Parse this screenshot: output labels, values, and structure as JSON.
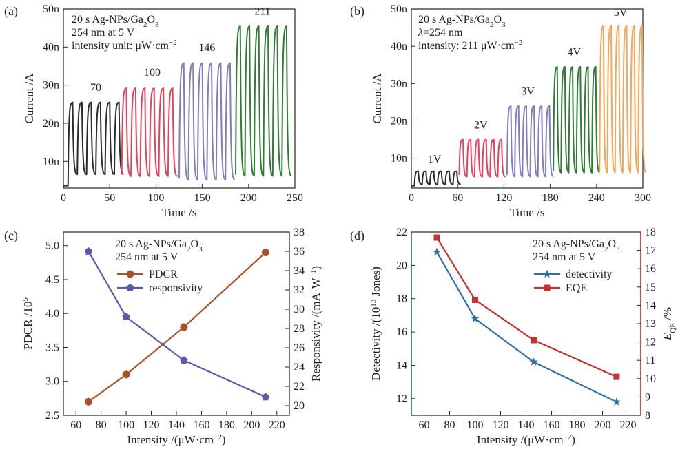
{
  "chart_data": [
    {
      "id": "a",
      "panel_label": "(a)",
      "type": "line",
      "title": "",
      "xlabel": "Time /s",
      "ylabel": "Current /A",
      "xlim": [
        0,
        250
      ],
      "ylim": [
        3,
        50
      ],
      "xticks": [
        0,
        50,
        100,
        150,
        200,
        250
      ],
      "yticks": [
        10,
        20,
        30,
        40,
        50
      ],
      "ytick_labels": [
        "10n",
        "20n",
        "30n",
        "40n",
        "50n"
      ],
      "annotation": [
        "20 s Ag-NPs/Ga",
        "2",
        "O",
        "3",
        "254 nm at 5 V",
        "intensity unit: μW·cm",
        "−2"
      ],
      "series": [
        {
          "name": "70",
          "color": "#2b2b2b",
          "t_start": 5,
          "cycles": 6,
          "period": 10,
          "peak": 25.5,
          "base": 6.5,
          "label_pos": [
            35,
            28.5
          ]
        },
        {
          "name": "100",
          "color": "#e8405a",
          "t_start": 63,
          "cycles": 6,
          "period": 10,
          "peak": 29.2,
          "base": 6.0,
          "label_pos": [
            96,
            32.5
          ]
        },
        {
          "name": "146",
          "color": "#7f7ebd",
          "t_start": 125,
          "cycles": 6,
          "period": 10,
          "peak": 35.8,
          "base": 5.0,
          "label_pos": [
            155,
            39.0
          ]
        },
        {
          "name": "211",
          "color": "#2f7d32",
          "t_start": 186,
          "cycles": 6,
          "period": 10,
          "peak": 45.5,
          "base": 6.0,
          "label_pos": [
            215,
            48.5
          ]
        }
      ],
      "initial_dark": 3.6
    },
    {
      "id": "b",
      "panel_label": "(b)",
      "type": "line",
      "title": "",
      "xlabel": "Time /s",
      "ylabel": "Current /A",
      "xlim": [
        0,
        300
      ],
      "ylim": [
        2,
        50
      ],
      "xticks": [
        0,
        60,
        120,
        180,
        240,
        300
      ],
      "yticks": [
        10,
        20,
        30,
        40,
        50
      ],
      "ytick_labels": [
        "10n",
        "20n",
        "30n",
        "40n",
        "50n"
      ],
      "annotation": [
        "20 s Ag-NPs/Ga",
        "2",
        "O",
        "3",
        "λ",
        "=254 nm",
        "intensity: 211 μW·cm",
        "−2"
      ],
      "series": [
        {
          "name": "1V",
          "color": "#2b2b2b",
          "t_start": 4,
          "cycles": 6,
          "period": 10,
          "peak": 6.5,
          "base": 3.0,
          "label_pos": [
            30,
            8.8
          ]
        },
        {
          "name": "2V",
          "color": "#e8405a",
          "t_start": 62,
          "cycles": 6,
          "period": 10,
          "peak": 15.0,
          "base": 5.0,
          "label_pos": [
            90,
            18.0
          ]
        },
        {
          "name": "3V",
          "color": "#7f7ebd",
          "t_start": 124,
          "cycles": 6,
          "period": 10,
          "peak": 24.0,
          "base": 5.0,
          "label_pos": [
            151,
            27.0
          ]
        },
        {
          "name": "4V",
          "color": "#2f7d32",
          "t_start": 184,
          "cycles": 6,
          "period": 10,
          "peak": 34.5,
          "base": 6.0,
          "label_pos": [
            211,
            37.5
          ]
        },
        {
          "name": "5V",
          "color": "#f2a65a",
          "t_start": 244,
          "cycles": 6,
          "period": 10,
          "peak": 45.5,
          "base": 6.0,
          "label_pos": [
            271,
            48.2
          ]
        }
      ],
      "initial_dark": 2.6
    },
    {
      "id": "c",
      "panel_label": "(c)",
      "type": "line",
      "title": "",
      "xlabel": "Intensity /(μW·cm",
      "xlabel_sup": "−2",
      "xlabel_end": ")",
      "ylabel": "PDCR /10",
      "ylabel_sup": "5",
      "y2label": "Responsivity /(mA·W",
      "y2label_sup": "−1",
      "y2label_end": ")",
      "xlim": [
        50,
        230
      ],
      "ylim": [
        2.5,
        5.2
      ],
      "y2lim": [
        19,
        38
      ],
      "xticks": [
        60,
        80,
        100,
        120,
        140,
        160,
        180,
        200,
        220
      ],
      "yticks": [
        2.5,
        3.0,
        3.5,
        4.0,
        4.5,
        5.0
      ],
      "ytick_labels": [
        "2.5",
        "3.0",
        "3.5",
        "4.0",
        "4.5",
        "5.0"
      ],
      "y2ticks": [
        20,
        22,
        24,
        26,
        28,
        30,
        32,
        34,
        36,
        38
      ],
      "annotation": [
        "20 s Ag-NPs/Ga",
        "2",
        "O",
        "3",
        "254 nm at 5 V"
      ],
      "x": [
        70,
        100,
        146,
        211
      ],
      "series": [
        {
          "name": "PDCR",
          "axis": "left",
          "color": "#a5532a",
          "marker": "circle",
          "values": [
            2.7,
            3.1,
            3.8,
            4.9
          ]
        },
        {
          "name": "responsivity",
          "axis": "right",
          "color": "#5a5aa8",
          "marker": "pentagon",
          "values": [
            36.0,
            29.2,
            24.7,
            20.9
          ]
        }
      ]
    },
    {
      "id": "d",
      "panel_label": "(d)",
      "type": "line",
      "title": "",
      "xlabel": "Intensity /(μW·cm",
      "xlabel_sup": "−2",
      "xlabel_end": ")",
      "ylabel": "Detectivity /(10",
      "ylabel_sup": "13",
      "ylabel_end": " Jones)",
      "y2label": "E",
      "y2label_sub": "QE",
      "y2label_end": " /%",
      "xlim": [
        50,
        230
      ],
      "ylim": [
        11,
        22
      ],
      "y2lim": [
        8,
        18
      ],
      "xticks": [
        60,
        80,
        100,
        120,
        140,
        160,
        180,
        200,
        220
      ],
      "yticks": [
        12,
        14,
        16,
        18,
        20,
        22
      ],
      "ytick_labels": [
        "12",
        "14",
        "16",
        "18",
        "20",
        "22"
      ],
      "y2ticks": [
        8,
        9,
        10,
        11,
        12,
        13,
        14,
        15,
        16,
        17,
        18
      ],
      "annotation": [
        "20 s Ag-NPs/Ga",
        "2",
        "O",
        "3",
        "254 nm at 5 V"
      ],
      "x": [
        70,
        100,
        146,
        211
      ],
      "series": [
        {
          "name": "detectivity",
          "axis": "left",
          "color": "#2e6fa8",
          "marker": "star",
          "values": [
            20.8,
            16.8,
            14.2,
            11.8
          ]
        },
        {
          "name": "EQE",
          "axis": "right",
          "color": "#c8302f",
          "marker": "square",
          "values": [
            17.7,
            14.3,
            12.1,
            10.1
          ]
        }
      ]
    }
  ]
}
